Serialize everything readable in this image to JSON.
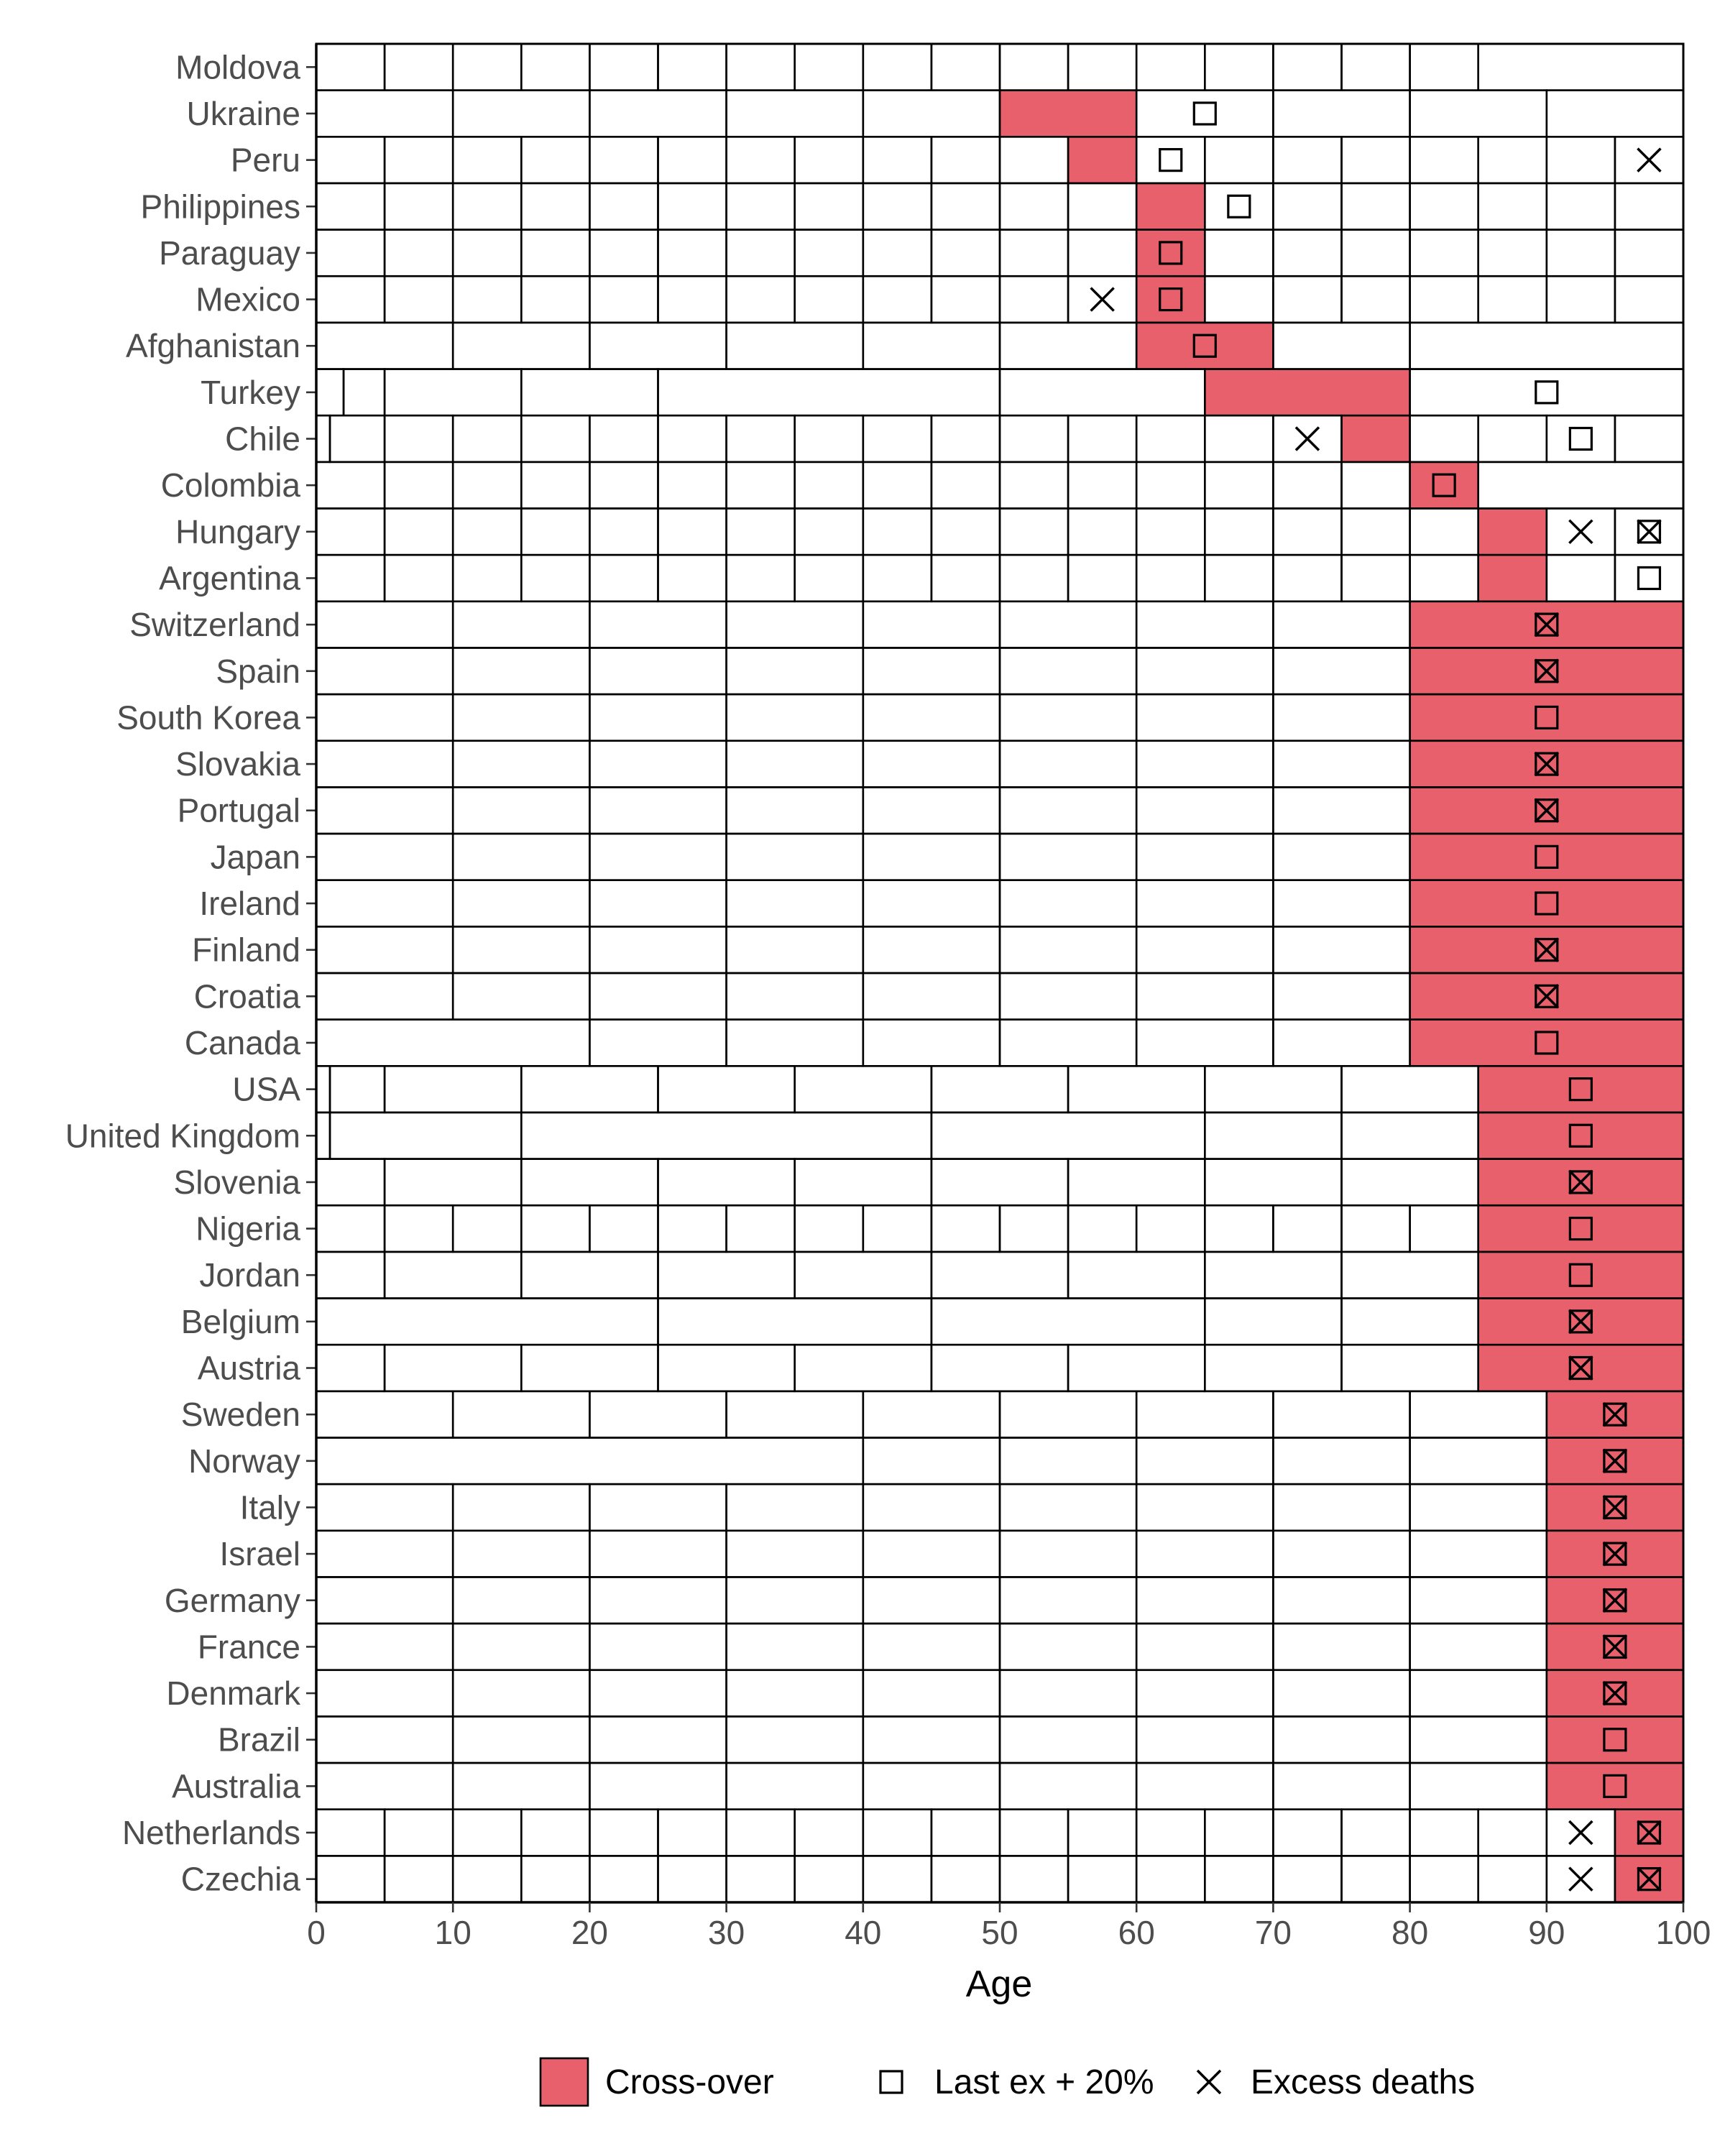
{
  "colors": {
    "crossover": "#E8606B",
    "cell_border": "#000000",
    "label": "#4d4d4d"
  },
  "chart_data": {
    "type": "heatmap",
    "title": "",
    "xlabel": "Age",
    "ylabel": "",
    "xlim": [
      0,
      100
    ],
    "x_ticks": [
      0,
      10,
      20,
      30,
      40,
      50,
      60,
      70,
      80,
      90,
      100
    ],
    "grid": false,
    "legend": {
      "placement": "bottom",
      "entries": [
        {
          "key": "crossover",
          "label": "Cross-over",
          "marker": "filled-box"
        },
        {
          "key": "last_ex",
          "label": "Last ex + 20%",
          "marker": "square"
        },
        {
          "key": "excess",
          "label": "Excess deaths",
          "marker": "cross"
        }
      ]
    },
    "rows": [
      {
        "country": "Moldova",
        "breaks": [
          0,
          5,
          10,
          15,
          20,
          25,
          30,
          35,
          40,
          45,
          50,
          55,
          60,
          65,
          70,
          75,
          80,
          85,
          100
        ],
        "crossover": null,
        "last_ex": null,
        "excess": null
      },
      {
        "country": "Ukraine",
        "breaks": [
          0,
          10,
          20,
          30,
          40,
          50,
          60,
          70,
          80,
          90,
          100
        ],
        "crossover": [
          50,
          60
        ],
        "last_ex": 65,
        "excess": null
      },
      {
        "country": "Peru",
        "breaks": [
          0,
          5,
          10,
          15,
          20,
          25,
          30,
          35,
          40,
          45,
          50,
          55,
          60,
          65,
          70,
          75,
          80,
          85,
          90,
          95,
          100
        ],
        "crossover": [
          55,
          60
        ],
        "last_ex": 62.5,
        "excess": 97.5
      },
      {
        "country": "Philippines",
        "breaks": [
          0,
          5,
          10,
          15,
          20,
          25,
          30,
          35,
          40,
          45,
          50,
          55,
          60,
          65,
          70,
          75,
          80,
          85,
          90,
          95,
          100
        ],
        "crossover": [
          60,
          65
        ],
        "last_ex": 67.5,
        "excess": null
      },
      {
        "country": "Paraguay",
        "breaks": [
          0,
          5,
          10,
          15,
          20,
          25,
          30,
          35,
          40,
          45,
          50,
          55,
          60,
          65,
          70,
          75,
          80,
          85,
          90,
          95,
          100
        ],
        "crossover": [
          60,
          65
        ],
        "last_ex": 62.5,
        "excess": null
      },
      {
        "country": "Mexico",
        "breaks": [
          0,
          5,
          10,
          15,
          20,
          25,
          30,
          35,
          40,
          45,
          50,
          55,
          60,
          65,
          70,
          75,
          80,
          85,
          90,
          95,
          100
        ],
        "crossover": [
          60,
          65
        ],
        "last_ex": 62.5,
        "excess": 57.5
      },
      {
        "country": "Afghanistan",
        "breaks": [
          0,
          10,
          20,
          30,
          40,
          50,
          60,
          70,
          80,
          100
        ],
        "crossover": [
          60,
          70
        ],
        "last_ex": 65,
        "excess": null
      },
      {
        "country": "Turkey",
        "breaks": [
          0,
          2,
          5,
          15,
          25,
          50,
          65,
          80,
          100
        ],
        "crossover": [
          65,
          80
        ],
        "last_ex": 90,
        "excess": null
      },
      {
        "country": "Chile",
        "breaks": [
          0,
          1,
          5,
          10,
          15,
          20,
          25,
          30,
          35,
          40,
          45,
          50,
          55,
          60,
          65,
          70,
          75,
          80,
          85,
          90,
          95,
          100
        ],
        "crossover": [
          75,
          80
        ],
        "last_ex": 92.5,
        "excess": 72.5
      },
      {
        "country": "Colombia",
        "breaks": [
          0,
          5,
          10,
          15,
          20,
          25,
          30,
          35,
          40,
          45,
          50,
          55,
          60,
          65,
          70,
          75,
          80,
          85,
          100
        ],
        "crossover": [
          80,
          85
        ],
        "last_ex": 82.5,
        "excess": null
      },
      {
        "country": "Hungary",
        "breaks": [
          0,
          5,
          10,
          15,
          20,
          25,
          30,
          35,
          40,
          45,
          50,
          55,
          60,
          65,
          70,
          75,
          80,
          85,
          90,
          95,
          100
        ],
        "crossover": [
          85,
          90
        ],
        "last_ex": 97.5,
        "excess": [
          92.5,
          97.5
        ]
      },
      {
        "country": "Argentina",
        "breaks": [
          0,
          5,
          10,
          15,
          20,
          25,
          30,
          35,
          40,
          45,
          50,
          55,
          60,
          65,
          70,
          75,
          80,
          85,
          90,
          95,
          100
        ],
        "crossover": [
          85,
          90
        ],
        "last_ex": 97.5,
        "excess": null
      },
      {
        "country": "Switzerland",
        "breaks": [
          0,
          10,
          20,
          30,
          40,
          50,
          60,
          70,
          80,
          100
        ],
        "crossover": [
          80,
          100
        ],
        "last_ex": 90,
        "excess": 90
      },
      {
        "country": "Spain",
        "breaks": [
          0,
          10,
          20,
          30,
          40,
          50,
          60,
          70,
          80,
          100
        ],
        "crossover": [
          80,
          100
        ],
        "last_ex": 90,
        "excess": 90
      },
      {
        "country": "South Korea",
        "breaks": [
          0,
          10,
          20,
          30,
          40,
          50,
          60,
          70,
          80,
          100
        ],
        "crossover": [
          80,
          100
        ],
        "last_ex": 90,
        "excess": null
      },
      {
        "country": "Slovakia",
        "breaks": [
          0,
          10,
          20,
          30,
          40,
          50,
          60,
          70,
          80,
          100
        ],
        "crossover": [
          80,
          100
        ],
        "last_ex": 90,
        "excess": 90
      },
      {
        "country": "Portugal",
        "breaks": [
          0,
          10,
          20,
          30,
          40,
          50,
          60,
          70,
          80,
          100
        ],
        "crossover": [
          80,
          100
        ],
        "last_ex": 90,
        "excess": 90
      },
      {
        "country": "Japan",
        "breaks": [
          0,
          10,
          20,
          30,
          40,
          50,
          60,
          70,
          80,
          100
        ],
        "crossover": [
          80,
          100
        ],
        "last_ex": 90,
        "excess": null
      },
      {
        "country": "Ireland",
        "breaks": [
          0,
          10,
          20,
          30,
          40,
          50,
          60,
          70,
          80,
          100
        ],
        "crossover": [
          80,
          100
        ],
        "last_ex": 90,
        "excess": null
      },
      {
        "country": "Finland",
        "breaks": [
          0,
          10,
          20,
          30,
          40,
          50,
          60,
          70,
          80,
          100
        ],
        "crossover": [
          80,
          100
        ],
        "last_ex": 90,
        "excess": 90
      },
      {
        "country": "Croatia",
        "breaks": [
          0,
          10,
          20,
          30,
          40,
          50,
          60,
          70,
          80,
          100
        ],
        "crossover": [
          80,
          100
        ],
        "last_ex": 90,
        "excess": 90
      },
      {
        "country": "Canada",
        "breaks": [
          0,
          20,
          30,
          40,
          50,
          60,
          70,
          80,
          100
        ],
        "crossover": [
          80,
          100
        ],
        "last_ex": 90,
        "excess": null
      },
      {
        "country": "USA",
        "breaks": [
          0,
          1,
          5,
          15,
          25,
          35,
          45,
          55,
          65,
          75,
          85,
          100
        ],
        "crossover": [
          85,
          100
        ],
        "last_ex": 92.5,
        "excess": null
      },
      {
        "country": "United Kingdom",
        "breaks": [
          0,
          1,
          15,
          45,
          65,
          75,
          85,
          100
        ],
        "crossover": [
          85,
          100
        ],
        "last_ex": 92.5,
        "excess": null
      },
      {
        "country": "Slovenia",
        "breaks": [
          0,
          5,
          15,
          25,
          35,
          45,
          55,
          65,
          75,
          85,
          100
        ],
        "crossover": [
          85,
          100
        ],
        "last_ex": 92.5,
        "excess": 92.5
      },
      {
        "country": "Nigeria",
        "breaks": [
          0,
          5,
          10,
          15,
          20,
          25,
          30,
          35,
          40,
          45,
          50,
          55,
          60,
          65,
          70,
          75,
          80,
          85,
          100
        ],
        "crossover": [
          85,
          100
        ],
        "last_ex": 92.5,
        "excess": null
      },
      {
        "country": "Jordan",
        "breaks": [
          0,
          5,
          15,
          25,
          35,
          45,
          55,
          65,
          75,
          85,
          100
        ],
        "crossover": [
          85,
          100
        ],
        "last_ex": 92.5,
        "excess": null
      },
      {
        "country": "Belgium",
        "breaks": [
          0,
          25,
          45,
          65,
          75,
          85,
          100
        ],
        "crossover": [
          85,
          100
        ],
        "last_ex": 92.5,
        "excess": 92.5
      },
      {
        "country": "Austria",
        "breaks": [
          0,
          5,
          15,
          25,
          35,
          45,
          55,
          65,
          75,
          85,
          100
        ],
        "crossover": [
          85,
          100
        ],
        "last_ex": 92.5,
        "excess": 92.5
      },
      {
        "country": "Sweden",
        "breaks": [
          0,
          10,
          20,
          30,
          40,
          50,
          60,
          70,
          80,
          90,
          100
        ],
        "crossover": [
          90,
          100
        ],
        "last_ex": 95,
        "excess": 95
      },
      {
        "country": "Norway",
        "breaks": [
          0,
          40,
          50,
          60,
          70,
          80,
          90,
          100
        ],
        "crossover": [
          90,
          100
        ],
        "last_ex": 95,
        "excess": 95
      },
      {
        "country": "Italy",
        "breaks": [
          0,
          10,
          20,
          30,
          40,
          50,
          60,
          70,
          80,
          90,
          100
        ],
        "crossover": [
          90,
          100
        ],
        "last_ex": 95,
        "excess": 95
      },
      {
        "country": "Israel",
        "breaks": [
          0,
          10,
          20,
          30,
          40,
          50,
          60,
          70,
          80,
          90,
          100
        ],
        "crossover": [
          90,
          100
        ],
        "last_ex": 95,
        "excess": 95
      },
      {
        "country": "Germany",
        "breaks": [
          0,
          10,
          20,
          30,
          40,
          50,
          60,
          70,
          80,
          90,
          100
        ],
        "crossover": [
          90,
          100
        ],
        "last_ex": 95,
        "excess": 95
      },
      {
        "country": "France",
        "breaks": [
          0,
          10,
          20,
          30,
          40,
          50,
          60,
          70,
          80,
          90,
          100
        ],
        "crossover": [
          90,
          100
        ],
        "last_ex": 95,
        "excess": 95
      },
      {
        "country": "Denmark",
        "breaks": [
          0,
          10,
          20,
          30,
          40,
          50,
          60,
          70,
          80,
          90,
          100
        ],
        "crossover": [
          90,
          100
        ],
        "last_ex": 95,
        "excess": 95
      },
      {
        "country": "Brazil",
        "breaks": [
          0,
          10,
          20,
          30,
          40,
          50,
          60,
          70,
          80,
          90,
          100
        ],
        "crossover": [
          90,
          100
        ],
        "last_ex": 95,
        "excess": null
      },
      {
        "country": "Australia",
        "breaks": [
          0,
          10,
          20,
          30,
          40,
          50,
          60,
          70,
          80,
          90,
          100
        ],
        "crossover": [
          90,
          100
        ],
        "last_ex": 95,
        "excess": null
      },
      {
        "country": "Netherlands",
        "breaks": [
          0,
          5,
          10,
          15,
          20,
          25,
          30,
          35,
          40,
          45,
          50,
          55,
          60,
          65,
          70,
          75,
          80,
          85,
          90,
          95,
          100
        ],
        "crossover": [
          95,
          100
        ],
        "last_ex": 97.5,
        "excess": [
          92.5,
          97.5
        ]
      },
      {
        "country": "Czechia",
        "breaks": [
          0,
          5,
          10,
          15,
          20,
          25,
          30,
          35,
          40,
          45,
          50,
          55,
          60,
          65,
          70,
          75,
          80,
          85,
          90,
          95,
          100
        ],
        "crossover": [
          95,
          100
        ],
        "last_ex": 97.5,
        "excess": [
          92.5,
          97.5
        ]
      }
    ]
  }
}
